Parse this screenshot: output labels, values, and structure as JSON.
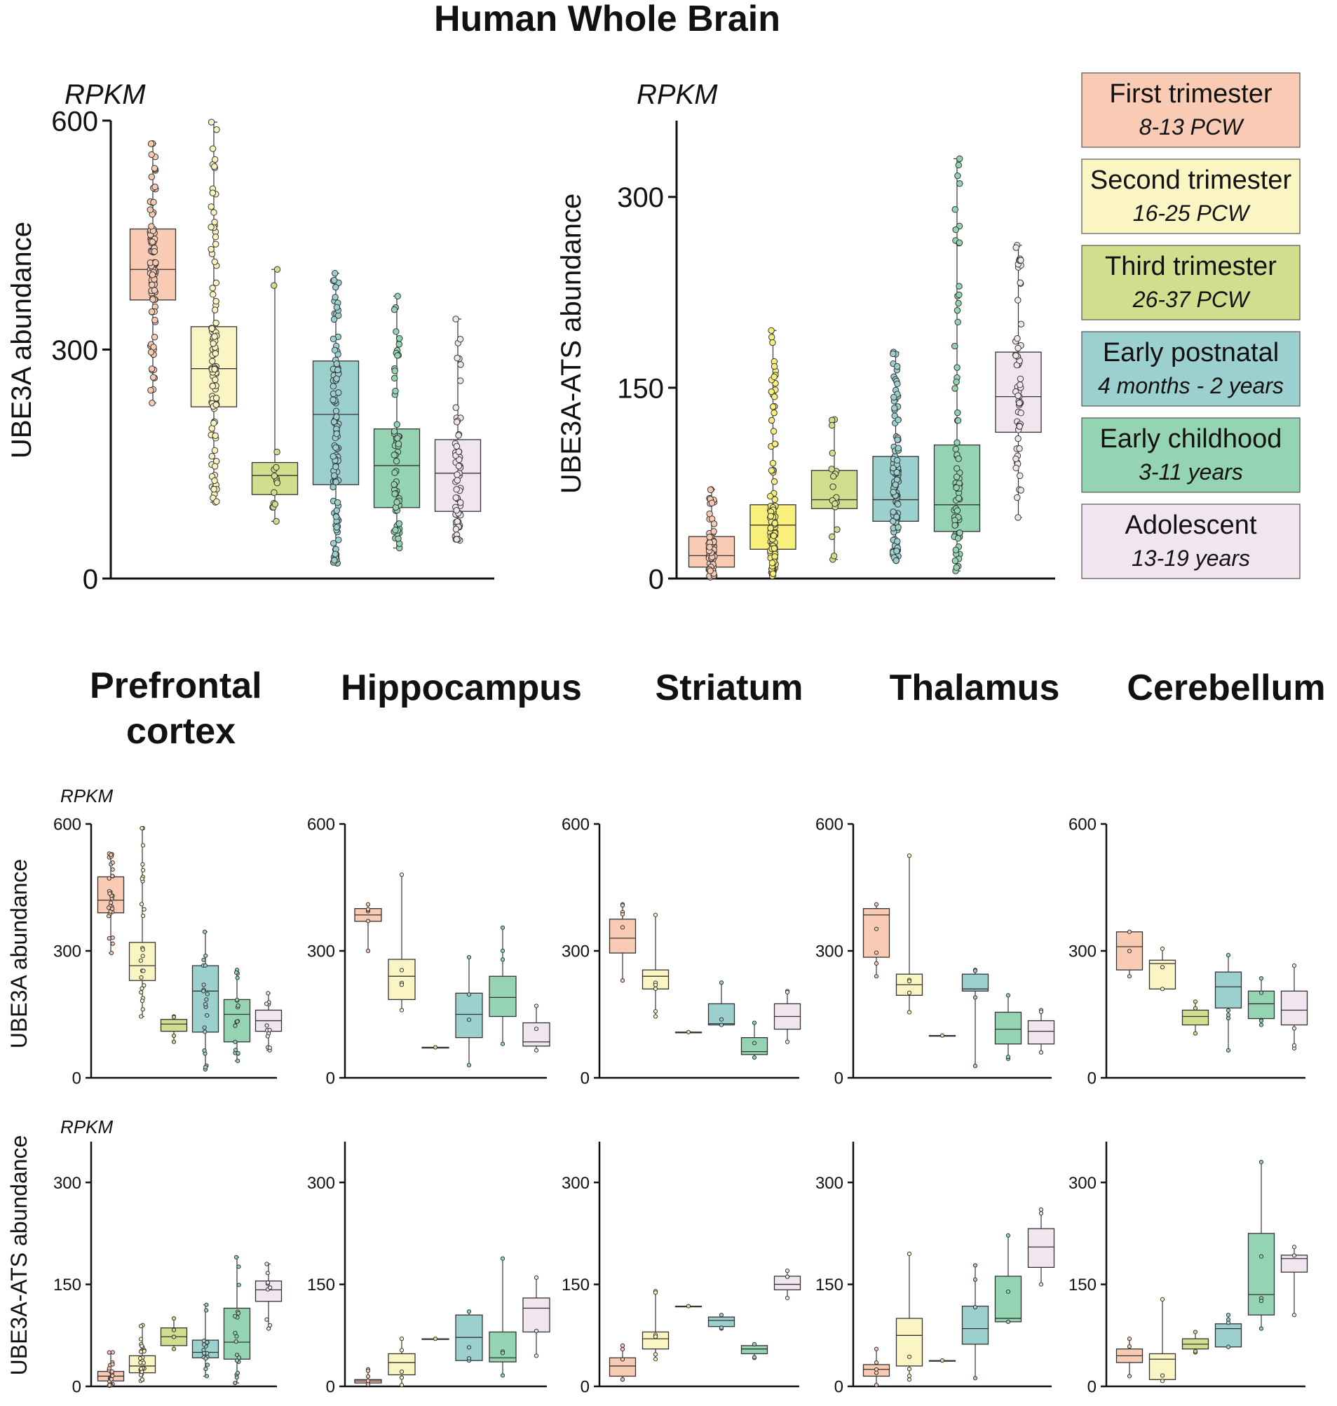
{
  "title": "Human Whole Brain",
  "colors": {
    "First trimester": "#f9cbb4",
    "Second trimester": "#fbf5c3",
    "Third trimester": "#d3dd8e",
    "Early postnatal": "#9cd0ce",
    "Early childhood": "#94d4b2",
    "Adolescent": "#f1e6ef",
    "ats_second_trimester_fill": "#f8f07a"
  },
  "legend": [
    {
      "label": "First trimester",
      "sub": "8-13 PCW"
    },
    {
      "label": "Second trimester",
      "sub": "16-25 PCW"
    },
    {
      "label": "Third trimester",
      "sub": "26-37 PCW"
    },
    {
      "label": "Early postnatal",
      "sub": "4 months - 2 years"
    },
    {
      "label": "Early childhood",
      "sub": "3-11 years"
    },
    {
      "label": "Adolescent",
      "sub": "13-19 years"
    }
  ],
  "region_titles": [
    "Prefrontal cortex",
    "Hippocampus",
    "Striatum",
    "Thalamus",
    "Cerebellum"
  ],
  "chart_data": [
    {
      "id": "whole-ube3a",
      "type": "box",
      "unit_label": "RPKM",
      "ylabel": "UBE3A abundance",
      "ylim": [
        0,
        600
      ],
      "yticks": [
        0,
        300,
        600
      ],
      "categories": [
        "First trimester",
        "Second trimester",
        "Third trimester",
        "Early postnatal",
        "Early childhood",
        "Adolescent"
      ],
      "boxes": [
        {
          "q1": 365,
          "median": 405,
          "q3": 458,
          "min": 230,
          "max": 570,
          "n": 100
        },
        {
          "q1": 225,
          "median": 275,
          "q3": 330,
          "min": 100,
          "max": 598,
          "n": 110
        },
        {
          "q1": 110,
          "median": 135,
          "q3": 152,
          "min": 75,
          "max": 405,
          "n": 15
        },
        {
          "q1": 123,
          "median": 215,
          "q3": 285,
          "min": 20,
          "max": 400,
          "n": 110
        },
        {
          "q1": 93,
          "median": 148,
          "q3": 196,
          "min": 40,
          "max": 370,
          "n": 60
        },
        {
          "q1": 88,
          "median": 138,
          "q3": 182,
          "min": 50,
          "max": 340,
          "n": 60
        }
      ]
    },
    {
      "id": "whole-ats",
      "type": "box",
      "unit_label": "RPKM",
      "ylabel": "UBE3A-ATS abundance",
      "ylim": [
        0,
        360
      ],
      "yticks": [
        0,
        150,
        300
      ],
      "categories": [
        "First trimester",
        "Second trimester",
        "Third trimester",
        "Early postnatal",
        "Early childhood",
        "Adolescent"
      ],
      "boxes": [
        {
          "q1": 9,
          "median": 18,
          "q3": 33,
          "min": 1,
          "max": 70,
          "n": 80
        },
        {
          "q1": 23,
          "median": 42,
          "q3": 58,
          "min": 2,
          "max": 195,
          "n": 110
        },
        {
          "q1": 55,
          "median": 62,
          "q3": 85,
          "min": 15,
          "max": 125,
          "n": 18
        },
        {
          "q1": 45,
          "median": 62,
          "q3": 96,
          "min": 14,
          "max": 178,
          "n": 110
        },
        {
          "q1": 37,
          "median": 58,
          "q3": 105,
          "min": 6,
          "max": 330,
          "n": 70
        },
        {
          "q1": 115,
          "median": 143,
          "q3": 178,
          "min": 48,
          "max": 262,
          "n": 60
        }
      ]
    },
    {
      "id": "pfc-ube3a",
      "type": "box",
      "region": "Prefrontal cortex",
      "unit_label": "RPKM",
      "ylabel": "UBE3A abundance",
      "ylim": [
        0,
        600
      ],
      "yticks": [
        0,
        300,
        600
      ],
      "boxes": [
        {
          "q1": 390,
          "median": 420,
          "q3": 475,
          "min": 295,
          "max": 530,
          "n": 30
        },
        {
          "q1": 230,
          "median": 265,
          "q3": 320,
          "min": 145,
          "max": 590,
          "n": 25
        },
        {
          "q1": 110,
          "median": 127,
          "q3": 138,
          "min": 85,
          "max": 145,
          "n": 4
        },
        {
          "q1": 108,
          "median": 205,
          "q3": 265,
          "min": 20,
          "max": 345,
          "n": 20
        },
        {
          "q1": 85,
          "median": 150,
          "q3": 185,
          "min": 40,
          "max": 255,
          "n": 18
        },
        {
          "q1": 110,
          "median": 135,
          "q3": 160,
          "min": 65,
          "max": 200,
          "n": 12
        }
      ]
    },
    {
      "id": "hip-ube3a",
      "type": "box",
      "region": "Hippocampus",
      "ylim": [
        0,
        600
      ],
      "yticks": [
        0,
        300,
        600
      ],
      "boxes": [
        {
          "q1": 370,
          "median": 385,
          "q3": 400,
          "min": 300,
          "max": 410,
          "n": 6
        },
        {
          "q1": 185,
          "median": 240,
          "q3": 280,
          "min": 160,
          "max": 480,
          "n": 5
        },
        {
          "q1": 72,
          "median": 72,
          "q3": 72,
          "min": 72,
          "max": 72,
          "n": 1
        },
        {
          "q1": 95,
          "median": 150,
          "q3": 200,
          "min": 30,
          "max": 285,
          "n": 4
        },
        {
          "q1": 145,
          "median": 190,
          "q3": 240,
          "min": 80,
          "max": 355,
          "n": 4
        },
        {
          "q1": 75,
          "median": 85,
          "q3": 130,
          "min": 65,
          "max": 170,
          "n": 3
        }
      ]
    },
    {
      "id": "str-ube3a",
      "type": "box",
      "region": "Striatum",
      "ylim": [
        0,
        600
      ],
      "yticks": [
        0,
        300,
        600
      ],
      "boxes": [
        {
          "q1": 295,
          "median": 330,
          "q3": 375,
          "min": 230,
          "max": 410,
          "n": 6
        },
        {
          "q1": 210,
          "median": 240,
          "q3": 255,
          "min": 145,
          "max": 385,
          "n": 6
        },
        {
          "q1": 108,
          "median": 108,
          "q3": 108,
          "min": 108,
          "max": 108,
          "n": 1
        },
        {
          "q1": 125,
          "median": 128,
          "q3": 175,
          "min": 125,
          "max": 225,
          "n": 3
        },
        {
          "q1": 55,
          "median": 62,
          "q3": 95,
          "min": 48,
          "max": 130,
          "n": 3
        },
        {
          "q1": 115,
          "median": 145,
          "q3": 175,
          "min": 85,
          "max": 205,
          "n": 3
        }
      ]
    },
    {
      "id": "tha-ube3a",
      "type": "box",
      "region": "Thalamus",
      "ylim": [
        0,
        600
      ],
      "yticks": [
        0,
        300,
        600
      ],
      "boxes": [
        {
          "q1": 285,
          "median": 385,
          "q3": 400,
          "min": 240,
          "max": 410,
          "n": 5
        },
        {
          "q1": 195,
          "median": 220,
          "q3": 245,
          "min": 155,
          "max": 525,
          "n": 5
        },
        {
          "q1": 100,
          "median": 100,
          "q3": 100,
          "min": 100,
          "max": 100,
          "n": 1
        },
        {
          "q1": 205,
          "median": 210,
          "q3": 245,
          "min": 28,
          "max": 255,
          "n": 4
        },
        {
          "q1": 80,
          "median": 115,
          "q3": 155,
          "min": 45,
          "max": 195,
          "n": 3
        },
        {
          "q1": 80,
          "median": 110,
          "q3": 135,
          "min": 60,
          "max": 160,
          "n": 3
        }
      ]
    },
    {
      "id": "cer-ube3a",
      "type": "box",
      "region": "Cerebellum",
      "ylim": [
        0,
        600
      ],
      "yticks": [
        0,
        300,
        600
      ],
      "boxes": [
        {
          "q1": 255,
          "median": 310,
          "q3": 345,
          "min": 240,
          "max": 345,
          "n": 3
        },
        {
          "q1": 210,
          "median": 270,
          "q3": 278,
          "min": 210,
          "max": 305,
          "n": 3
        },
        {
          "q1": 125,
          "median": 145,
          "q3": 160,
          "min": 105,
          "max": 180,
          "n": 3
        },
        {
          "q1": 165,
          "median": 215,
          "q3": 250,
          "min": 65,
          "max": 290,
          "n": 5
        },
        {
          "q1": 140,
          "median": 175,
          "q3": 205,
          "min": 125,
          "max": 235,
          "n": 5
        },
        {
          "q1": 125,
          "median": 160,
          "q3": 205,
          "min": 70,
          "max": 265,
          "n": 4
        }
      ]
    },
    {
      "id": "pfc-ats",
      "type": "box",
      "region": "Prefrontal cortex",
      "unit_label": "RPKM",
      "ylabel": "UBE3A-ATS abundance",
      "ylim": [
        0,
        360
      ],
      "yticks": [
        0,
        150,
        300
      ],
      "boxes": [
        {
          "q1": 8,
          "median": 15,
          "q3": 22,
          "min": 1,
          "max": 50,
          "n": 25
        },
        {
          "q1": 20,
          "median": 30,
          "q3": 45,
          "min": 8,
          "max": 90,
          "n": 25
        },
        {
          "q1": 60,
          "median": 73,
          "q3": 86,
          "min": 55,
          "max": 100,
          "n": 5
        },
        {
          "q1": 42,
          "median": 50,
          "q3": 68,
          "min": 15,
          "max": 120,
          "n": 20
        },
        {
          "q1": 40,
          "median": 65,
          "q3": 115,
          "min": 5,
          "max": 190,
          "n": 18
        },
        {
          "q1": 125,
          "median": 142,
          "q3": 155,
          "min": 85,
          "max": 180,
          "n": 10
        }
      ]
    },
    {
      "id": "hip-ats",
      "type": "box",
      "region": "Hippocampus",
      "ylim": [
        0,
        360
      ],
      "yticks": [
        0,
        150,
        300
      ],
      "boxes": [
        {
          "q1": 5,
          "median": 8,
          "q3": 10,
          "min": 3,
          "max": 25,
          "n": 5
        },
        {
          "q1": 17,
          "median": 35,
          "q3": 48,
          "min": 2,
          "max": 70,
          "n": 5
        },
        {
          "q1": 70,
          "median": 70,
          "q3": 70,
          "min": 70,
          "max": 70,
          "n": 1
        },
        {
          "q1": 38,
          "median": 72,
          "q3": 105,
          "min": 38,
          "max": 110,
          "n": 4
        },
        {
          "q1": 36,
          "median": 42,
          "q3": 80,
          "min": 16,
          "max": 188,
          "n": 4
        },
        {
          "q1": 80,
          "median": 115,
          "q3": 130,
          "min": 45,
          "max": 160,
          "n": 3
        }
      ]
    },
    {
      "id": "str-ats",
      "type": "box",
      "region": "Striatum",
      "ylim": [
        0,
        360
      ],
      "yticks": [
        0,
        150,
        300
      ],
      "boxes": [
        {
          "q1": 15,
          "median": 30,
          "q3": 42,
          "min": 10,
          "max": 60,
          "n": 5
        },
        {
          "q1": 55,
          "median": 70,
          "q3": 80,
          "min": 40,
          "max": 140,
          "n": 6
        },
        {
          "q1": 118,
          "median": 118,
          "q3": 118,
          "min": 118,
          "max": 118,
          "n": 1
        },
        {
          "q1": 88,
          "median": 97,
          "q3": 102,
          "min": 85,
          "max": 105,
          "n": 3
        },
        {
          "q1": 48,
          "median": 55,
          "q3": 60,
          "min": 42,
          "max": 62,
          "n": 3
        },
        {
          "q1": 142,
          "median": 150,
          "q3": 162,
          "min": 130,
          "max": 170,
          "n": 3
        }
      ]
    },
    {
      "id": "tha-ats",
      "type": "box",
      "region": "Thalamus",
      "ylim": [
        0,
        360
      ],
      "yticks": [
        0,
        150,
        300
      ],
      "boxes": [
        {
          "q1": 15,
          "median": 25,
          "q3": 32,
          "min": 2,
          "max": 55,
          "n": 5
        },
        {
          "q1": 30,
          "median": 75,
          "q3": 100,
          "min": 10,
          "max": 195,
          "n": 5
        },
        {
          "q1": 38,
          "median": 38,
          "q3": 38,
          "min": 38,
          "max": 38,
          "n": 1
        },
        {
          "q1": 62,
          "median": 85,
          "q3": 118,
          "min": 12,
          "max": 178,
          "n": 4
        },
        {
          "q1": 95,
          "median": 100,
          "q3": 162,
          "min": 95,
          "max": 222,
          "n": 3
        },
        {
          "q1": 175,
          "median": 205,
          "q3": 232,
          "min": 150,
          "max": 260,
          "n": 3
        }
      ]
    },
    {
      "id": "cer-ats",
      "type": "box",
      "region": "Cerebellum",
      "ylim": [
        0,
        360
      ],
      "yticks": [
        0,
        150,
        300
      ],
      "boxes": [
        {
          "q1": 35,
          "median": 45,
          "q3": 55,
          "min": 15,
          "max": 70,
          "n": 3
        },
        {
          "q1": 10,
          "median": 40,
          "q3": 48,
          "min": 8,
          "max": 128,
          "n": 3
        },
        {
          "q1": 55,
          "median": 62,
          "q3": 70,
          "min": 50,
          "max": 80,
          "n": 3
        },
        {
          "q1": 58,
          "median": 85,
          "q3": 92,
          "min": 58,
          "max": 105,
          "n": 4
        },
        {
          "q1": 105,
          "median": 135,
          "q3": 225,
          "min": 85,
          "max": 330,
          "n": 5
        },
        {
          "q1": 168,
          "median": 188,
          "q3": 193,
          "min": 105,
          "max": 205,
          "n": 3
        }
      ]
    }
  ]
}
